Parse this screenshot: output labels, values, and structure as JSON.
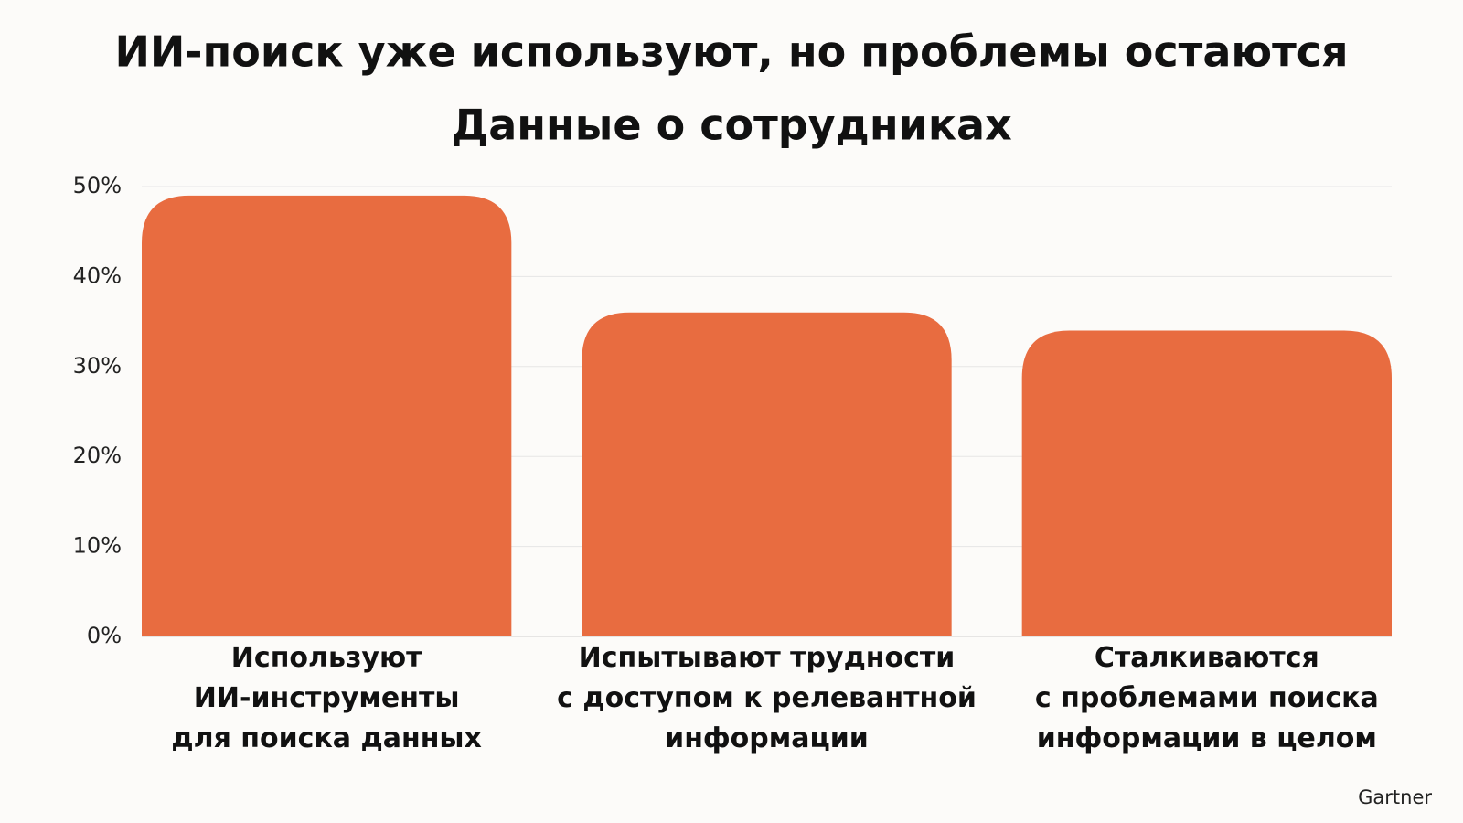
{
  "chart_data": {
    "type": "bar",
    "title": "ИИ-поиск уже используют, но проблемы остаются",
    "subtitle": "Данные о сотрудниках",
    "categories": [
      "Используют\nИИ-инструменты\nдля поиска данных",
      "Испытывают трудности\nс доступом к релевантной\nинформации",
      "Сталкиваются\nс проблемами поиска\nинформации в целом"
    ],
    "values": [
      49,
      36,
      34
    ],
    "color": "#e86c40",
    "ylim": [
      0,
      50
    ],
    "yticks": [
      {
        "value": 0,
        "label": "0%"
      },
      {
        "value": 10,
        "label": "10%"
      },
      {
        "value": 20,
        "label": "20%"
      },
      {
        "value": 30,
        "label": "30%"
      },
      {
        "value": 40,
        "label": "40%"
      },
      {
        "value": 50,
        "label": "50%"
      }
    ],
    "grid": true,
    "source": "Gartner"
  }
}
